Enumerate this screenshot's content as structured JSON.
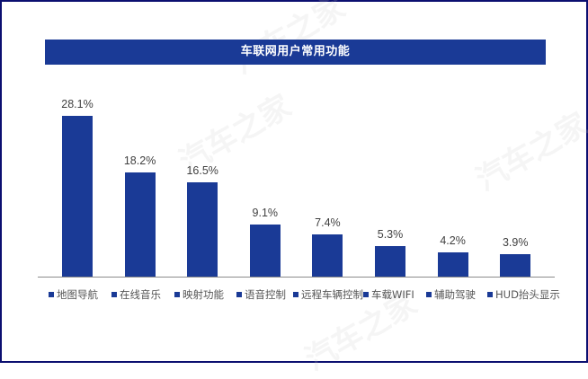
{
  "title": "车联网用户常用功能",
  "watermark": "汽车之家",
  "colors": {
    "bar": "#1a3a96",
    "frame": "#0b0f70",
    "title_bg": "#1a3a96",
    "axis": "#8a8a8a"
  },
  "chart_data": {
    "type": "bar",
    "title": "车联网用户常用功能",
    "categories": [
      "地图导航",
      "在线音乐",
      "映射功能",
      "语音控制",
      "远程车辆控制",
      "车载WIFI",
      "辅助驾驶",
      "HUD抬头显示"
    ],
    "values": [
      28.1,
      18.2,
      16.5,
      9.1,
      7.4,
      5.3,
      4.2,
      3.9
    ],
    "labels": [
      "28.1%",
      "18.2%",
      "16.5%",
      "9.1%",
      "7.4%",
      "5.3%",
      "4.2%",
      "3.9%"
    ],
    "unit": "%",
    "xlabel": "",
    "ylabel": "",
    "grid": false,
    "legend_position": "bottom",
    "series": [
      {
        "name": "车联网用户常用功能",
        "values": [
          28.1,
          18.2,
          16.5,
          9.1,
          7.4,
          5.3,
          4.2,
          3.9
        ]
      }
    ]
  },
  "legend": [
    {
      "label": "地图导航"
    },
    {
      "label": "在线音乐"
    },
    {
      "label": "映射功能"
    },
    {
      "label": "语音控制"
    },
    {
      "label": "远程车辆控制"
    },
    {
      "label": "车载WIFI"
    },
    {
      "label": "辅助驾驶"
    },
    {
      "label": "HUD抬头显示"
    }
  ]
}
